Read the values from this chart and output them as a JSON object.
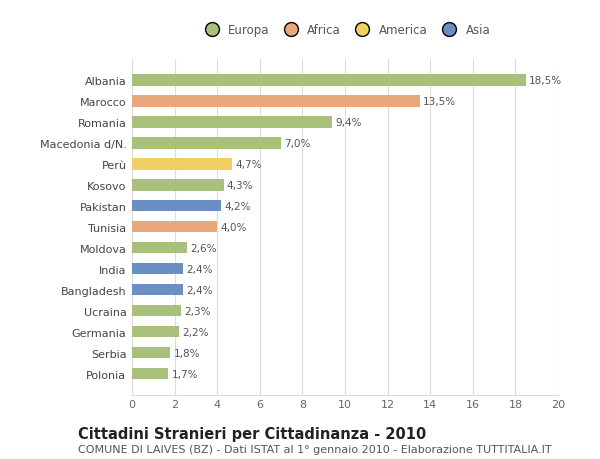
{
  "countries": [
    "Polonia",
    "Serbia",
    "Germania",
    "Ucraina",
    "Bangladesh",
    "India",
    "Moldova",
    "Tunisia",
    "Pakistan",
    "Kosovo",
    "Perù",
    "Macedonia d/N.",
    "Romania",
    "Marocco",
    "Albania"
  ],
  "values": [
    1.7,
    1.8,
    2.2,
    2.3,
    2.4,
    2.4,
    2.6,
    4.0,
    4.2,
    4.3,
    4.7,
    7.0,
    9.4,
    13.5,
    18.5
  ],
  "labels": [
    "1,7%",
    "1,8%",
    "2,2%",
    "2,3%",
    "2,4%",
    "2,4%",
    "2,6%",
    "4,0%",
    "4,2%",
    "4,3%",
    "4,7%",
    "7,0%",
    "9,4%",
    "13,5%",
    "18,5%"
  ],
  "regions": [
    "Europa",
    "Europa",
    "Europa",
    "Europa",
    "Asia",
    "Asia",
    "Europa",
    "Africa",
    "Asia",
    "Europa",
    "America",
    "Europa",
    "Europa",
    "Africa",
    "Europa"
  ],
  "colors": {
    "Europa": "#a8c07a",
    "Africa": "#e8a87c",
    "America": "#f0d060",
    "Asia": "#6b8fc2"
  },
  "legend_labels": [
    "Europa",
    "Africa",
    "America",
    "Asia"
  ],
  "legend_colors": [
    "#a8c07a",
    "#e8a87c",
    "#f0d060",
    "#6b8fc2"
  ],
  "title": "Cittadini Stranieri per Cittadinanza - 2010",
  "subtitle": "COMUNE DI LAIVES (BZ) - Dati ISTAT al 1° gennaio 2010 - Elaborazione TUTTITALIA.IT",
  "xlim": [
    0,
    20
  ],
  "xticks": [
    0,
    2,
    4,
    6,
    8,
    10,
    12,
    14,
    16,
    18,
    20
  ],
  "bg_color": "#ffffff",
  "grid_color": "#dddddd",
  "bar_height": 0.55,
  "title_fontsize": 10.5,
  "subtitle_fontsize": 8,
  "label_fontsize": 7.5,
  "tick_fontsize": 8,
  "legend_fontsize": 8.5
}
